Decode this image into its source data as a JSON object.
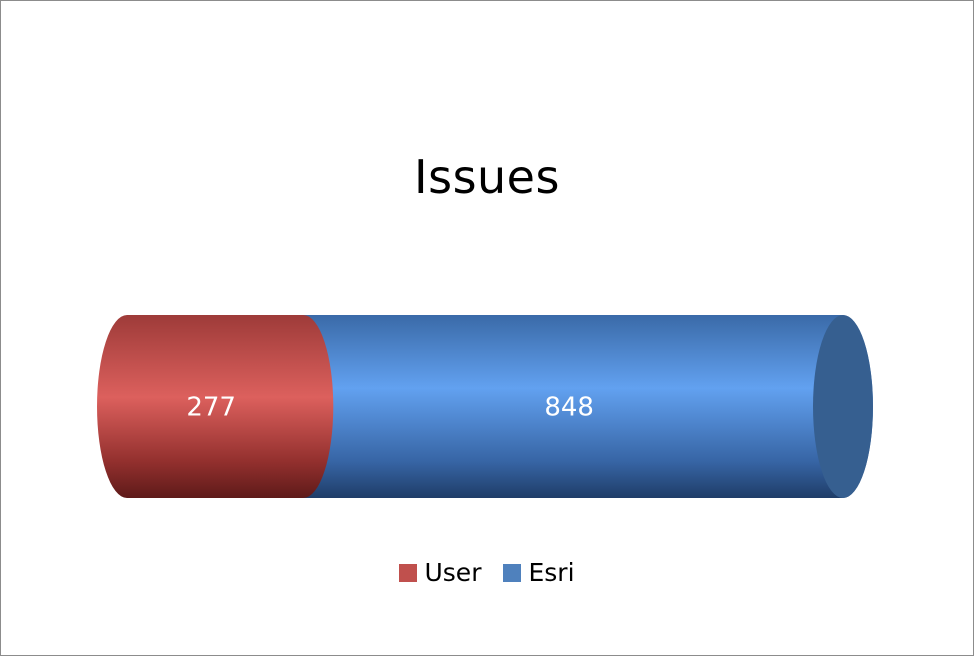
{
  "chart_data": {
    "type": "bar",
    "orientation": "horizontal",
    "stacked": true,
    "shape": "cylinder",
    "title": "Issues",
    "categories": [
      ""
    ],
    "series": [
      {
        "name": "User",
        "values": [
          277
        ],
        "color": "#c0504d"
      },
      {
        "name": "Esri",
        "values": [
          848
        ],
        "color": "#4f81bd"
      }
    ],
    "data_labels": [
      "277",
      "848"
    ],
    "legend": "bottom",
    "grid": false
  }
}
